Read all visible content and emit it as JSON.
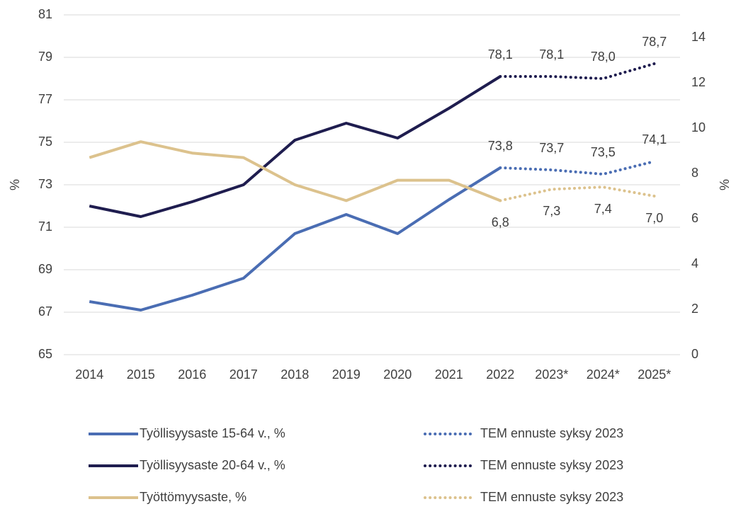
{
  "chart_data": {
    "type": "line",
    "categories": [
      "2014",
      "2015",
      "2016",
      "2017",
      "2018",
      "2019",
      "2020",
      "2021",
      "2022",
      "2023*",
      "2024*",
      "2025*"
    ],
    "ylabel": "%",
    "y2label": "%",
    "ylim": [
      65,
      81
    ],
    "yticks": [
      65,
      67,
      69,
      71,
      73,
      75,
      77,
      79,
      81
    ],
    "y2lim": [
      0,
      15
    ],
    "y2ticks": [
      0,
      2,
      4,
      6,
      8,
      10,
      12,
      14
    ],
    "grid": true,
    "series": [
      {
        "name": "Työllisyysaste 15-64 v., %",
        "color": "#4a6db3",
        "style": "solid",
        "values": [
          67.5,
          67.1,
          67.8,
          68.6,
          70.7,
          71.6,
          70.7,
          72.3,
          73.8,
          null,
          null,
          null
        ],
        "value_labels": [
          null,
          null,
          null,
          null,
          null,
          null,
          null,
          null,
          "73,8",
          null,
          null,
          null
        ]
      },
      {
        "name": "Työllisyysaste 20-64 v., %",
        "color": "#1f1d4f",
        "style": "solid",
        "values": [
          72.0,
          71.5,
          72.2,
          73.0,
          75.1,
          75.9,
          75.2,
          76.6,
          78.1,
          null,
          null,
          null
        ],
        "value_labels": [
          null,
          null,
          null,
          null,
          null,
          null,
          null,
          null,
          "78,1",
          null,
          null,
          null
        ]
      },
      {
        "name": "Työttömyysaste, %",
        "color": "#dcc28d",
        "style": "solid",
        "axis": "y2",
        "values": [
          8.7,
          9.4,
          8.9,
          8.7,
          7.5,
          6.8,
          7.7,
          7.7,
          6.8,
          null,
          null,
          null
        ],
        "value_labels": [
          null,
          null,
          null,
          null,
          null,
          null,
          null,
          null,
          "6,8",
          null,
          null,
          null
        ]
      },
      {
        "name": "TEM ennuste syksy 2023",
        "color": "#4a6db3",
        "style": "dotted",
        "values": [
          null,
          null,
          null,
          null,
          null,
          null,
          null,
          null,
          73.8,
          73.7,
          73.5,
          74.1
        ],
        "value_labels": [
          null,
          null,
          null,
          null,
          null,
          null,
          null,
          null,
          null,
          "73,7",
          "73,5",
          "74,1"
        ]
      },
      {
        "name": "TEM ennuste syksy 2023",
        "color": "#1f1d4f",
        "style": "dotted",
        "values": [
          null,
          null,
          null,
          null,
          null,
          null,
          null,
          null,
          78.1,
          78.1,
          78.0,
          78.7
        ],
        "value_labels": [
          null,
          null,
          null,
          null,
          null,
          null,
          null,
          null,
          null,
          "78,1",
          "78,0",
          "78,7"
        ]
      },
      {
        "name": "TEM ennuste syksy 2023",
        "color": "#dcc28d",
        "style": "dotted",
        "axis": "y2",
        "values": [
          null,
          null,
          null,
          null,
          null,
          null,
          null,
          null,
          6.8,
          7.3,
          7.4,
          7.0
        ],
        "value_labels": [
          null,
          null,
          null,
          null,
          null,
          null,
          null,
          null,
          null,
          "7,3",
          "7,4",
          "7,0"
        ]
      }
    ]
  }
}
